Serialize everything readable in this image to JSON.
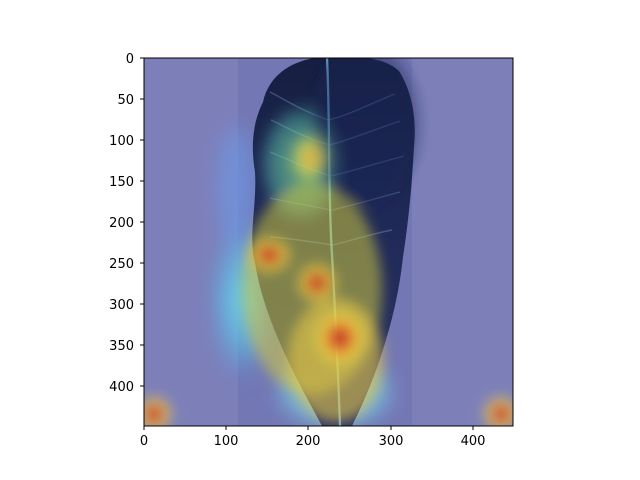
{
  "figure": {
    "type": "heatmap-overlay-image",
    "subject": "leaf",
    "colormap": "jet",
    "x_axis": {
      "range": [
        0,
        448
      ],
      "ticks": [
        {
          "value": 0,
          "label": "0"
        },
        {
          "value": 100,
          "label": "100"
        },
        {
          "value": 200,
          "label": "200"
        },
        {
          "value": 300,
          "label": "300"
        },
        {
          "value": 400,
          "label": "400"
        }
      ]
    },
    "y_axis": {
      "range": [
        0,
        448
      ],
      "inverted": true,
      "ticks": [
        {
          "value": 0,
          "label": "0"
        },
        {
          "value": 50,
          "label": "50"
        },
        {
          "value": 100,
          "label": "100"
        },
        {
          "value": 150,
          "label": "150"
        },
        {
          "value": 200,
          "label": "200"
        },
        {
          "value": 250,
          "label": "250"
        },
        {
          "value": 300,
          "label": "300"
        },
        {
          "value": 350,
          "label": "350"
        },
        {
          "value": 400,
          "label": "400"
        }
      ]
    },
    "hotspots": [
      {
        "x": 155,
        "y": 240,
        "level": "red"
      },
      {
        "x": 210,
        "y": 275,
        "level": "red"
      },
      {
        "x": 240,
        "y": 340,
        "level": "red"
      },
      {
        "x": 200,
        "y": 140,
        "level": "yellow"
      },
      {
        "x": 10,
        "y": 430,
        "level": "red"
      },
      {
        "x": 438,
        "y": 430,
        "level": "red"
      }
    ]
  }
}
